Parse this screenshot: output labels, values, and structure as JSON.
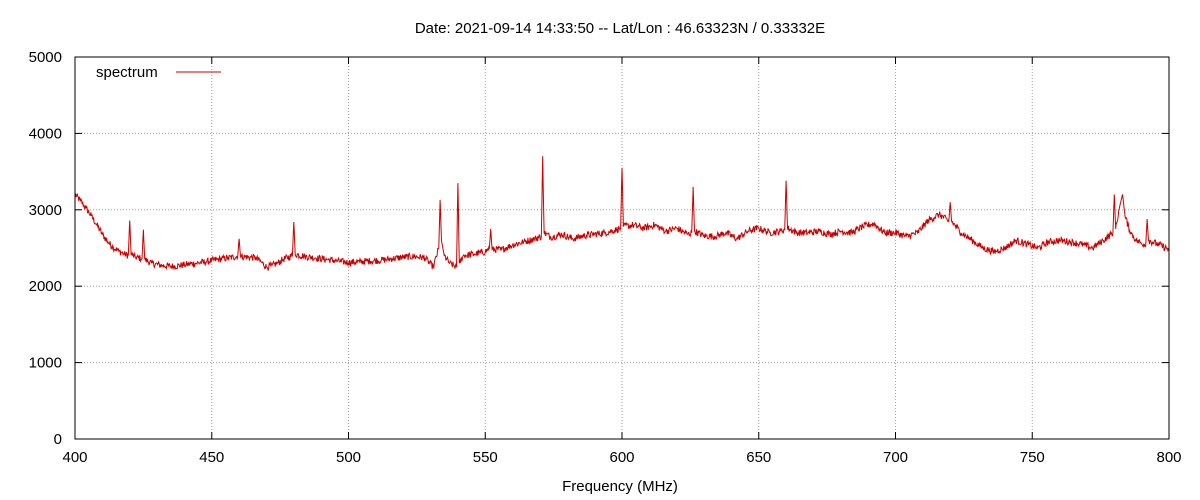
{
  "chart_data": {
    "type": "line",
    "title": "Date: 2021-09-14 14:33:50  --  Lat/Lon : 46.63323N / 0.33332E",
    "xlabel": "Frequency (MHz)",
    "ylabel": "",
    "xlim": [
      400,
      800
    ],
    "ylim": [
      0,
      5000
    ],
    "xticks": [
      400,
      450,
      500,
      550,
      600,
      650,
      700,
      750,
      800
    ],
    "yticks": [
      0,
      1000,
      2000,
      3000,
      4000,
      5000
    ],
    "grid": true,
    "legend": "top-left",
    "series_color": "#cc0000",
    "series": [
      {
        "name": "spectrum",
        "x": [
          400,
          402,
          404,
          406,
          408,
          410,
          412,
          414,
          416,
          418,
          419.5,
          420,
          420.5,
          422,
          424.5,
          425,
          425.5,
          428,
          432,
          436,
          440,
          444,
          448,
          452,
          456,
          459.5,
          460,
          460.5,
          464,
          466,
          468,
          470,
          472,
          474,
          476,
          479.5,
          480,
          480.5,
          484,
          488,
          492,
          496,
          500,
          504,
          508,
          512,
          516,
          520,
          524,
          528,
          531,
          533,
          533.5,
          534,
          535,
          537,
          539.5,
          540,
          540.5,
          542,
          546,
          550,
          551.5,
          552,
          552.5,
          556,
          560,
          564,
          568,
          570.5,
          571,
          571.5,
          574,
          578,
          582,
          586,
          590,
          594,
          598,
          599.5,
          600,
          600.5,
          604,
          608,
          612,
          616,
          620,
          624,
          625.5,
          626,
          626.5,
          630,
          634,
          638,
          642,
          646,
          650,
          654,
          658,
          659.5,
          660,
          660.5,
          664,
          668,
          672,
          676,
          680,
          684,
          688,
          692,
          696,
          700,
          704,
          708,
          712,
          716,
          719.5,
          720,
          720.5,
          724,
          728,
          732,
          736,
          740,
          744,
          748,
          752,
          756,
          760,
          764,
          768,
          772,
          776,
          779.5,
          780,
          780.5,
          782,
          783,
          784,
          786,
          788,
          790,
          791.5,
          792,
          792.5,
          796,
          800
        ],
        "values": [
          3200,
          3120,
          3020,
          2920,
          2800,
          2680,
          2580,
          2510,
          2460,
          2420,
          2400,
          2860,
          2420,
          2380,
          2360,
          2740,
          2350,
          2300,
          2270,
          2260,
          2280,
          2300,
          2320,
          2350,
          2370,
          2390,
          2620,
          2390,
          2380,
          2370,
          2320,
          2250,
          2270,
          2300,
          2350,
          2400,
          2840,
          2420,
          2390,
          2370,
          2350,
          2330,
          2310,
          2320,
          2330,
          2340,
          2360,
          2380,
          2390,
          2370,
          2250,
          2500,
          3130,
          2600,
          2400,
          2300,
          2250,
          3350,
          2300,
          2400,
          2420,
          2450,
          2500,
          2750,
          2480,
          2480,
          2540,
          2580,
          2620,
          2650,
          3700,
          2700,
          2640,
          2680,
          2620,
          2660,
          2680,
          2700,
          2740,
          2760,
          3550,
          2780,
          2800,
          2760,
          2800,
          2720,
          2760,
          2680,
          2700,
          3300,
          2720,
          2660,
          2650,
          2700,
          2620,
          2720,
          2760,
          2700,
          2720,
          2740,
          3380,
          2760,
          2700,
          2700,
          2720,
          2680,
          2720,
          2700,
          2780,
          2820,
          2700,
          2700,
          2650,
          2700,
          2860,
          2940,
          2850,
          3100,
          2850,
          2700,
          2600,
          2500,
          2450,
          2500,
          2600,
          2550,
          2500,
          2580,
          2600,
          2580,
          2550,
          2500,
          2600,
          2700,
          3200,
          2750,
          3050,
          3200,
          2900,
          2700,
          2600,
          2560,
          2550,
          2880,
          2600,
          2550,
          2480
        ]
      }
    ]
  }
}
